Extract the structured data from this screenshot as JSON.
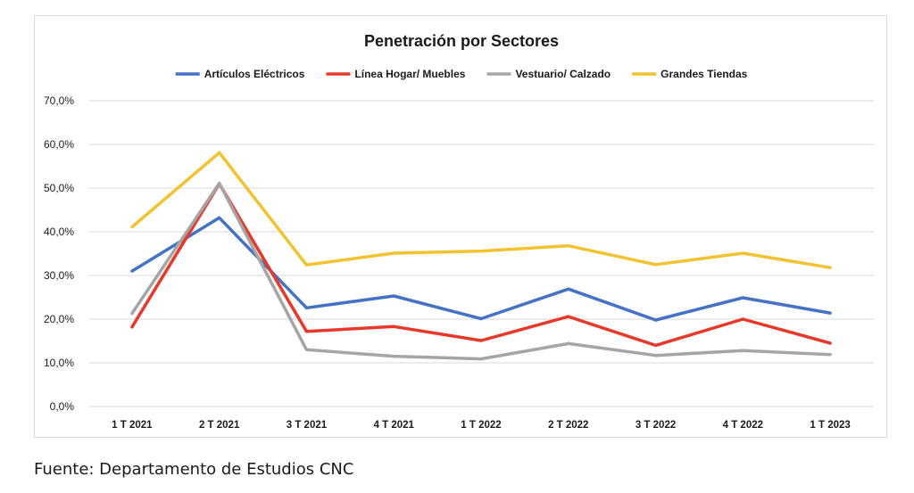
{
  "chart_data": {
    "type": "line",
    "title": "Penetración por Sectores",
    "categories": [
      "1 T 2021",
      "2 T 2021",
      "3 T 2021",
      "4 T 2021",
      "1 T 2022",
      "2 T 2022",
      "3 T 2022",
      "4 T 2022",
      "1 T 2023"
    ],
    "ylim": [
      0,
      70
    ],
    "yticks": [
      0,
      10,
      20,
      30,
      40,
      50,
      60,
      70
    ],
    "ytick_labels": [
      "0,0%",
      "10,0%",
      "20,0%",
      "30,0%",
      "40,0%",
      "50,0%",
      "60,0%",
      "70,0%"
    ],
    "grid": true,
    "legend_position": "top",
    "series": [
      {
        "name": "Artículos Eléctricos",
        "color": "#4472c4",
        "values": [
          31.0,
          43.2,
          22.6,
          25.3,
          20.1,
          26.9,
          19.8,
          24.9,
          21.4
        ]
      },
      {
        "name": "Línea Hogar/ Muebles",
        "color": "#e8382a",
        "values": [
          18.2,
          51.0,
          17.2,
          18.3,
          15.1,
          20.6,
          14.0,
          20.0,
          14.5
        ]
      },
      {
        "name": "Vestuario/ Calzado",
        "color": "#a5a5a5",
        "values": [
          21.3,
          51.1,
          13.0,
          11.5,
          10.9,
          14.4,
          11.7,
          12.8,
          11.9
        ]
      },
      {
        "name": "Grandes Tiendas",
        "color": "#f2c230",
        "values": [
          41.1,
          58.1,
          32.4,
          35.1,
          35.6,
          36.8,
          32.5,
          35.1,
          31.8
        ]
      }
    ]
  },
  "source": "Fuente: Departamento de Estudios CNC"
}
